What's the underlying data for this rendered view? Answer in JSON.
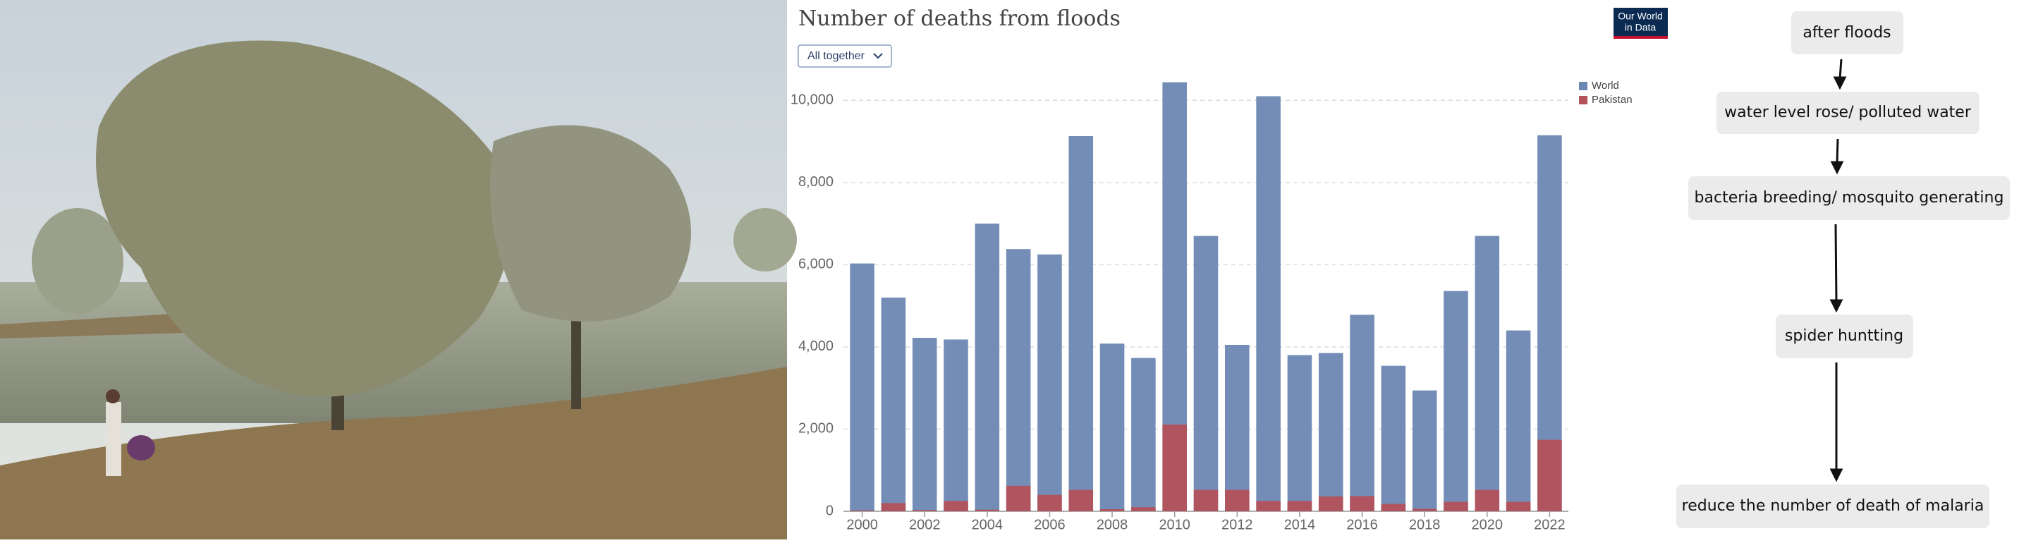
{
  "chart_data": {
    "type": "bar",
    "title": "Number of deaths from floods",
    "x": [
      2000,
      2001,
      2002,
      2003,
      2004,
      2005,
      2006,
      2007,
      2008,
      2009,
      2010,
      2011,
      2012,
      2013,
      2014,
      2015,
      2016,
      2017,
      2018,
      2019,
      2020,
      2021,
      2022
    ],
    "series": [
      {
        "name": "World",
        "color": "#6d87b3",
        "values": [
          6030,
          5200,
          4220,
          4180,
          7000,
          6380,
          6250,
          9130,
          4080,
          3730,
          10440,
          6700,
          4050,
          10100,
          3800,
          3850,
          4780,
          3540,
          2940,
          5360,
          6700,
          4400,
          9150
        ]
      },
      {
        "name": "Pakistan",
        "color": "#b3525a",
        "values": [
          20,
          200,
          30,
          250,
          40,
          620,
          400,
          520,
          50,
          100,
          2110,
          520,
          520,
          250,
          250,
          360,
          370,
          180,
          60,
          230,
          520,
          230,
          1740
        ]
      }
    ],
    "xlim": [
      1999.4,
      2022.6
    ],
    "xticks": [
      2000,
      2002,
      2004,
      2006,
      2008,
      2010,
      2012,
      2014,
      2016,
      2018,
      2020,
      2022
    ],
    "ylim": [
      0,
      11000
    ],
    "yticks": [
      0,
      {
        "value": 2000,
        "label": "2,000"
      },
      {
        "value": 4000,
        "label": "4,000"
      },
      {
        "value": 6000,
        "label": "6,000"
      },
      {
        "value": 8000,
        "label": "8,000"
      },
      {
        "value": 10000,
        "label": "10,000"
      }
    ],
    "grid": true,
    "legend": "top-right"
  },
  "control": {
    "dropdown": "All together"
  },
  "logo": [
    "Our World",
    "in Data"
  ],
  "flowchart": {
    "nodes": [
      {
        "label": "after floods"
      },
      {
        "label": "water level rose/ polluted water"
      },
      {
        "label": "bacteria breeding/ mosquito generating"
      },
      {
        "label": "spider huntting"
      },
      {
        "label": "reduce the number of death of malaria"
      }
    ]
  }
}
